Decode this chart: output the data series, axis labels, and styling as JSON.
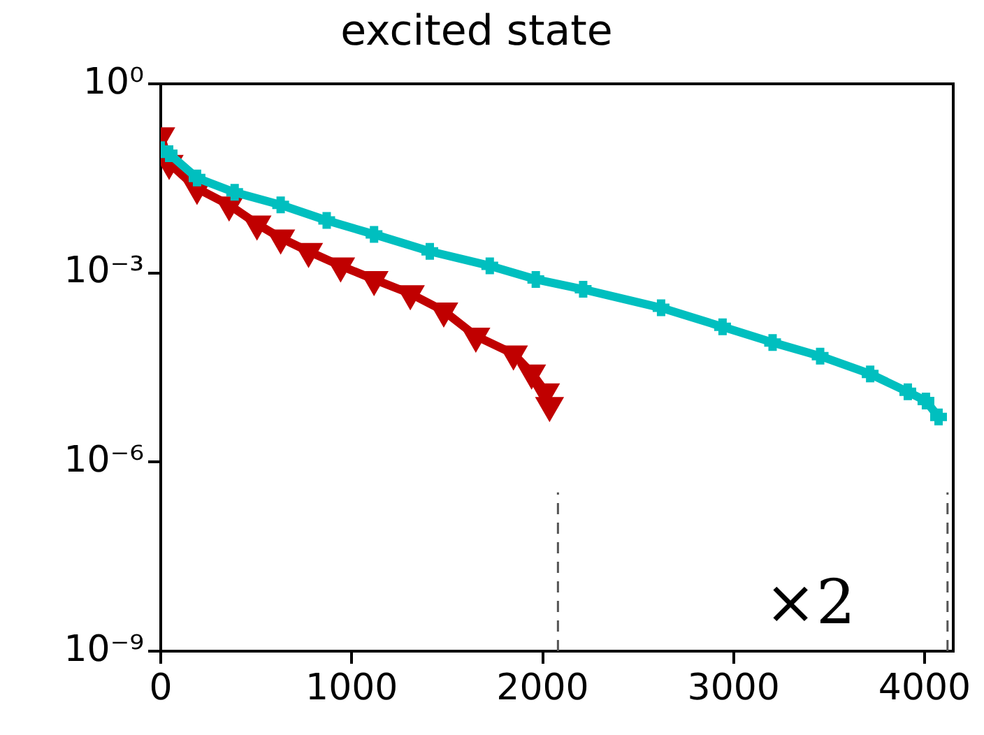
{
  "chart_data": {
    "type": "line",
    "title": "excited state",
    "log": "y",
    "grid": false,
    "legend": false,
    "xlim": [
      0,
      4150
    ],
    "xticks": [
      0,
      1000,
      2000,
      3000,
      4000
    ],
    "ylim": [
      1e-09,
      1
    ],
    "yticks": [
      {
        "value": 1,
        "label": "10⁰"
      },
      {
        "value": 0.001,
        "label": "10⁻³"
      },
      {
        "value": 1e-06,
        "label": "10⁻⁶"
      },
      {
        "value": 1e-09,
        "label": "10⁻⁹"
      }
    ],
    "series": [
      {
        "color": "#c00000",
        "marker": "triangle",
        "x": [
          0,
          44,
          190,
          358,
          504,
          628,
          774,
          942,
          1117,
          1307,
          1482,
          1650,
          1847,
          1942,
          2015,
          2036
        ],
        "values": [
          0.15,
          0.055,
          0.022,
          0.012,
          0.006,
          0.0036,
          0.0022,
          0.0013,
          0.00079,
          0.00047,
          0.00025,
          0.0001,
          5.2e-05,
          2.6e-05,
          1.3e-05,
          7.9e-06
        ]
      },
      {
        "color": "#00bfbf",
        "marker": "cross",
        "x": [
          0,
          44,
          190,
          387,
          628,
          869,
          1117,
          1409,
          1723,
          1964,
          2212,
          2620,
          2942,
          3204,
          3453,
          3715,
          3912,
          4007,
          4073
        ],
        "values": [
          0.09,
          0.078,
          0.032,
          0.019,
          0.012,
          0.0068,
          0.0041,
          0.0022,
          0.0013,
          0.00079,
          0.00055,
          0.00028,
          0.00014,
          7.9e-05,
          4.8e-05,
          2.5e-05,
          1.3e-05,
          9.3e-06,
          5.2e-06
        ]
      }
    ],
    "ref_lines": [
      {
        "axis": "x",
        "value": 2080,
        "color": "#555555",
        "line_style": "dashed"
      },
      {
        "axis": "x",
        "value": 4120,
        "color": "#555555",
        "line_style": "dashed"
      }
    ],
    "annotations": [
      "×2"
    ]
  }
}
